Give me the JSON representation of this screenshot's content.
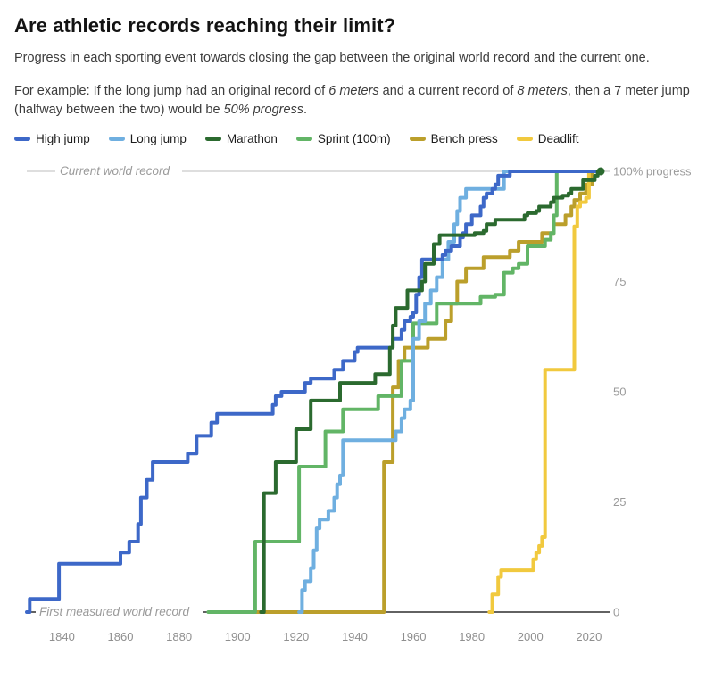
{
  "header": {
    "title": "Are athletic records reaching their limit?",
    "description": "Progress in each sporting event towards closing the gap between the original world record and the current one.",
    "example_segments": [
      {
        "text": "For example: If the long jump had an original record of ",
        "italic": false
      },
      {
        "text": "6 meters",
        "italic": true
      },
      {
        "text": " and a current record of ",
        "italic": false
      },
      {
        "text": "8 meters",
        "italic": true
      },
      {
        "text": ", then a 7 meter jump (halfway between the two) would be ",
        "italic": false
      },
      {
        "text": "50% progress",
        "italic": true
      },
      {
        "text": ".",
        "italic": false
      }
    ]
  },
  "chart_data": {
    "type": "line",
    "line_style": "step-after",
    "xlabel": "",
    "ylabel": "progress",
    "x_domain": [
      1828,
      2024
    ],
    "y_domain": [
      0,
      100
    ],
    "grid": "top-and-bottom-rules-only",
    "legend_position": "top",
    "x_ticks": [
      1840,
      1860,
      1880,
      1900,
      1920,
      1940,
      1960,
      1980,
      2000,
      2020
    ],
    "y_ticks": [
      {
        "value": 100,
        "label": "100% progress"
      },
      {
        "value": 75,
        "label": "75"
      },
      {
        "value": 50,
        "label": "50"
      },
      {
        "value": 25,
        "label": "25"
      },
      {
        "value": 0,
        "label": "0"
      }
    ],
    "annotations": {
      "top_line_label": "Current world record",
      "bottom_line_label": "First measured world record"
    },
    "colors": {
      "top_rule": "#cbcbcb",
      "bottom_rule": "#2e2e2e",
      "end_dot": "#2b6a2f"
    },
    "series": [
      {
        "name": "High jump",
        "key": "high-jump",
        "color": "#3d68c8",
        "points": [
          [
            1828,
            0
          ],
          [
            1829,
            3
          ],
          [
            1839,
            11
          ],
          [
            1860,
            13.5
          ],
          [
            1863,
            16
          ],
          [
            1866,
            20
          ],
          [
            1867,
            26
          ],
          [
            1869,
            30
          ],
          [
            1871,
            34
          ],
          [
            1883,
            36
          ],
          [
            1886,
            40
          ],
          [
            1891,
            43
          ],
          [
            1893,
            45
          ],
          [
            1912,
            47
          ],
          [
            1913,
            49
          ],
          [
            1915,
            50
          ],
          [
            1923,
            52
          ],
          [
            1925,
            53
          ],
          [
            1933,
            55
          ],
          [
            1936,
            57
          ],
          [
            1940,
            59
          ],
          [
            1941,
            60
          ],
          [
            1953,
            62
          ],
          [
            1956,
            64
          ],
          [
            1957,
            66
          ],
          [
            1959,
            67
          ],
          [
            1960,
            68
          ],
          [
            1961,
            72
          ],
          [
            1962,
            76
          ],
          [
            1963,
            80
          ],
          [
            1970,
            81
          ],
          [
            1971,
            82
          ],
          [
            1973,
            83
          ],
          [
            1976,
            85
          ],
          [
            1977,
            86
          ],
          [
            1978,
            88
          ],
          [
            1980,
            90
          ],
          [
            1983,
            92
          ],
          [
            1984,
            94
          ],
          [
            1985,
            95
          ],
          [
            1987,
            96
          ],
          [
            1988,
            97
          ],
          [
            1989,
            99
          ],
          [
            1993,
            100
          ],
          [
            2024,
            100
          ]
        ]
      },
      {
        "name": "Long jump",
        "key": "long-jump",
        "color": "#6fafe0",
        "points": [
          [
            1921,
            0
          ],
          [
            1922,
            5
          ],
          [
            1923,
            7
          ],
          [
            1925,
            10
          ],
          [
            1926,
            14
          ],
          [
            1927,
            19
          ],
          [
            1928,
            21
          ],
          [
            1931,
            23
          ],
          [
            1933,
            26
          ],
          [
            1934,
            29
          ],
          [
            1935,
            31
          ],
          [
            1936,
            39
          ],
          [
            1954,
            41
          ],
          [
            1956,
            44
          ],
          [
            1957,
            46
          ],
          [
            1959,
            48
          ],
          [
            1960,
            62
          ],
          [
            1962,
            66
          ],
          [
            1964,
            70
          ],
          [
            1966,
            73
          ],
          [
            1968,
            76
          ],
          [
            1970,
            80
          ],
          [
            1972,
            84
          ],
          [
            1974,
            88
          ],
          [
            1975,
            91
          ],
          [
            1976,
            94
          ],
          [
            1978,
            96
          ],
          [
            1991,
            100
          ],
          [
            2024,
            100
          ]
        ]
      },
      {
        "name": "Marathon",
        "key": "marathon",
        "color": "#2b6a2f",
        "points": [
          [
            1908,
            0
          ],
          [
            1909,
            27
          ],
          [
            1913,
            34
          ],
          [
            1920,
            41.5
          ],
          [
            1925,
            48
          ],
          [
            1935,
            52
          ],
          [
            1947,
            54
          ],
          [
            1952,
            60
          ],
          [
            1953,
            65
          ],
          [
            1954,
            69
          ],
          [
            1958,
            73
          ],
          [
            1963,
            75
          ],
          [
            1964,
            79
          ],
          [
            1967,
            83.5
          ],
          [
            1969,
            85.5
          ],
          [
            1981,
            86
          ],
          [
            1984,
            86.5
          ],
          [
            1985,
            88
          ],
          [
            1988,
            89
          ],
          [
            1998,
            90
          ],
          [
            1999,
            90.5
          ],
          [
            2002,
            91
          ],
          [
            2003,
            92
          ],
          [
            2007,
            93
          ],
          [
            2008,
            94
          ],
          [
            2011,
            94.5
          ],
          [
            2013,
            95
          ],
          [
            2014,
            96
          ],
          [
            2018,
            98
          ],
          [
            2022,
            99
          ],
          [
            2023,
            100
          ],
          [
            2024,
            100
          ]
        ]
      },
      {
        "name": "Sprint (100m)",
        "key": "sprint-100m",
        "color": "#62b566",
        "points": [
          [
            1890,
            0
          ],
          [
            1906,
            16
          ],
          [
            1921,
            33
          ],
          [
            1930,
            41
          ],
          [
            1936,
            46
          ],
          [
            1948,
            49
          ],
          [
            1956,
            57
          ],
          [
            1960,
            65.5
          ],
          [
            1968,
            70
          ],
          [
            1983,
            71.5
          ],
          [
            1988,
            72
          ],
          [
            1991,
            77
          ],
          [
            1994,
            78
          ],
          [
            1996,
            79
          ],
          [
            1999,
            83
          ],
          [
            2005,
            84.5
          ],
          [
            2007,
            86
          ],
          [
            2008,
            90
          ],
          [
            2009,
            100
          ],
          [
            2024,
            100
          ]
        ]
      },
      {
        "name": "Bench press",
        "key": "bench-press",
        "color": "#bb9f2b",
        "points": [
          [
            1898,
            0
          ],
          [
            1950,
            34
          ],
          [
            1953,
            51
          ],
          [
            1955,
            57
          ],
          [
            1957,
            60
          ],
          [
            1965,
            62
          ],
          [
            1971,
            66
          ],
          [
            1973,
            70
          ],
          [
            1975,
            75
          ],
          [
            1978,
            78
          ],
          [
            1984,
            80.5
          ],
          [
            1993,
            82
          ],
          [
            1996,
            84
          ],
          [
            2004,
            86
          ],
          [
            2008,
            88
          ],
          [
            2012,
            90
          ],
          [
            2014,
            92
          ],
          [
            2015,
            93.5
          ],
          [
            2017,
            95
          ],
          [
            2019,
            97
          ],
          [
            2021,
            100
          ],
          [
            2024,
            100
          ]
        ]
      },
      {
        "name": "Deadlift",
        "key": "deadlift",
        "color": "#f1c93e",
        "points": [
          [
            1986,
            0
          ],
          [
            1987,
            4
          ],
          [
            1989,
            8
          ],
          [
            1990,
            9.5
          ],
          [
            2001,
            12
          ],
          [
            2002,
            13.5
          ],
          [
            2003,
            15
          ],
          [
            2004,
            17
          ],
          [
            2005,
            55
          ],
          [
            2015,
            87.5
          ],
          [
            2016,
            92
          ],
          [
            2017,
            93
          ],
          [
            2019,
            94
          ],
          [
            2020,
            100
          ],
          [
            2024,
            100
          ]
        ]
      }
    ],
    "draw_order": [
      "bench-press",
      "deadlift",
      "sprint-100m",
      "long-jump",
      "high-jump",
      "marathon"
    ]
  }
}
